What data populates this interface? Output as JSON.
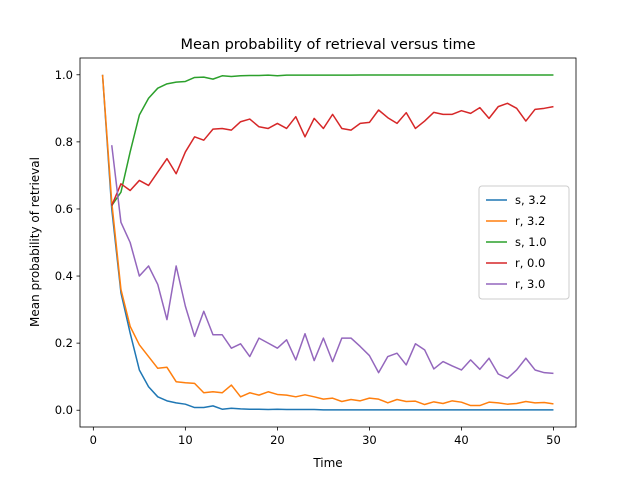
{
  "chart_data": {
    "type": "line",
    "title": "Mean probability of retrieval versus time",
    "xlabel": "Time",
    "ylabel": "Mean probability of retrieval",
    "xlim": [
      -1.45,
      52.45
    ],
    "ylim": [
      -0.05,
      1.05
    ],
    "xticks": [
      0,
      10,
      20,
      30,
      40,
      50
    ],
    "yticks": [
      0.0,
      0.2,
      0.4,
      0.6,
      0.8,
      1.0
    ],
    "xtick_labels": [
      "0",
      "10",
      "20",
      "30",
      "40",
      "50"
    ],
    "ytick_labels": [
      "0.0",
      "0.2",
      "0.4",
      "0.6",
      "0.8",
      "1.0"
    ],
    "grid": false,
    "legend_position": "center-right",
    "series": [
      {
        "name": "s, 3.2",
        "color": "#1f77b4",
        "x": [
          1,
          2,
          3,
          4,
          5,
          6,
          7,
          8,
          9,
          10,
          11,
          12,
          13,
          14,
          15,
          16,
          17,
          18,
          19,
          20,
          21,
          22,
          23,
          24,
          25,
          26,
          27,
          28,
          29,
          30,
          31,
          32,
          33,
          34,
          35,
          36,
          37,
          38,
          39,
          40,
          41,
          42,
          43,
          44,
          45,
          46,
          47,
          48,
          49,
          50
        ],
        "y": [
          1.0,
          0.6,
          0.35,
          0.23,
          0.12,
          0.07,
          0.04,
          0.028,
          0.022,
          0.018,
          0.008,
          0.008,
          0.013,
          0.003,
          0.006,
          0.004,
          0.003,
          0.003,
          0.002,
          0.003,
          0.002,
          0.002,
          0.002,
          0.002,
          0.001,
          0.001,
          0.001,
          0.001,
          0.001,
          0.001,
          0.001,
          0.001,
          0.001,
          0.001,
          0.001,
          0.001,
          0.001,
          0.001,
          0.001,
          0.001,
          0.001,
          0.001,
          0.001,
          0.001,
          0.001,
          0.001,
          0.001,
          0.001,
          0.001,
          0.001
        ]
      },
      {
        "name": "r, 3.2",
        "color": "#ff7f0e",
        "x": [
          1,
          2,
          3,
          4,
          5,
          6,
          7,
          8,
          9,
          10,
          11,
          12,
          13,
          14,
          15,
          16,
          17,
          18,
          19,
          20,
          21,
          22,
          23,
          24,
          25,
          26,
          27,
          28,
          29,
          30,
          31,
          32,
          33,
          34,
          35,
          36,
          37,
          38,
          39,
          40,
          41,
          42,
          43,
          44,
          45,
          46,
          47,
          48,
          49,
          50
        ],
        "y": [
          1.0,
          0.62,
          0.36,
          0.25,
          0.195,
          0.16,
          0.125,
          0.128,
          0.085,
          0.082,
          0.08,
          0.052,
          0.055,
          0.052,
          0.075,
          0.04,
          0.052,
          0.045,
          0.055,
          0.047,
          0.045,
          0.04,
          0.046,
          0.04,
          0.033,
          0.036,
          0.026,
          0.032,
          0.028,
          0.036,
          0.033,
          0.022,
          0.032,
          0.026,
          0.027,
          0.017,
          0.025,
          0.02,
          0.028,
          0.024,
          0.014,
          0.014,
          0.024,
          0.022,
          0.018,
          0.02,
          0.026,
          0.022,
          0.023,
          0.019
        ]
      },
      {
        "name": "s, 1.0",
        "color": "#2ca02c",
        "x": [
          2,
          3,
          4,
          5,
          6,
          7,
          8,
          9,
          10,
          11,
          12,
          13,
          14,
          15,
          16,
          17,
          18,
          19,
          20,
          21,
          22,
          23,
          24,
          25,
          26,
          27,
          28,
          29,
          30,
          31,
          32,
          33,
          34,
          35,
          36,
          37,
          38,
          39,
          40,
          41,
          42,
          43,
          44,
          45,
          46,
          47,
          48,
          49,
          50
        ],
        "y": [
          0.61,
          0.65,
          0.77,
          0.88,
          0.93,
          0.96,
          0.973,
          0.978,
          0.98,
          0.992,
          0.993,
          0.987,
          0.997,
          0.995,
          0.997,
          0.998,
          0.998,
          0.999,
          0.997,
          0.999,
          0.999,
          0.999,
          0.999,
          0.999,
          0.999,
          0.999,
          0.999,
          0.9995,
          0.9995,
          0.9995,
          0.9995,
          0.9995,
          0.9995,
          0.9995,
          0.9995,
          0.9995,
          0.9995,
          0.9995,
          0.9995,
          0.9995,
          0.9995,
          0.9995,
          0.9995,
          0.9995,
          0.9995,
          0.9995,
          0.9995,
          0.9995,
          0.9995
        ]
      },
      {
        "name": "r, 0.0",
        "color": "#d62728",
        "x": [
          2,
          3,
          4,
          5,
          6,
          7,
          8,
          9,
          10,
          11,
          12,
          13,
          14,
          15,
          16,
          17,
          18,
          19,
          20,
          21,
          22,
          23,
          24,
          25,
          26,
          27,
          28,
          29,
          30,
          31,
          32,
          33,
          34,
          35,
          36,
          37,
          38,
          39,
          40,
          41,
          42,
          43,
          44,
          45,
          46,
          47,
          48,
          49,
          50
        ],
        "y": [
          0.61,
          0.675,
          0.655,
          0.685,
          0.67,
          0.71,
          0.75,
          0.705,
          0.77,
          0.815,
          0.805,
          0.838,
          0.84,
          0.835,
          0.86,
          0.868,
          0.845,
          0.84,
          0.855,
          0.84,
          0.875,
          0.815,
          0.87,
          0.84,
          0.882,
          0.84,
          0.835,
          0.855,
          0.858,
          0.895,
          0.872,
          0.855,
          0.887,
          0.84,
          0.862,
          0.888,
          0.882,
          0.882,
          0.893,
          0.885,
          0.902,
          0.87,
          0.905,
          0.915,
          0.9,
          0.862,
          0.897,
          0.9,
          0.905
        ]
      },
      {
        "name": "r, 3.0",
        "color": "#9467bd",
        "x": [
          2,
          3,
          4,
          5,
          6,
          7,
          8,
          9,
          10,
          11,
          12,
          13,
          14,
          15,
          16,
          17,
          18,
          19,
          20,
          21,
          22,
          23,
          24,
          25,
          26,
          27,
          28,
          29,
          30,
          31,
          32,
          33,
          34,
          35,
          36,
          37,
          38,
          39,
          40,
          41,
          42,
          43,
          44,
          45,
          46,
          47,
          48,
          49,
          50
        ],
        "y": [
          0.79,
          0.56,
          0.5,
          0.4,
          0.43,
          0.375,
          0.27,
          0.43,
          0.31,
          0.22,
          0.295,
          0.225,
          0.225,
          0.185,
          0.198,
          0.16,
          0.215,
          0.2,
          0.185,
          0.21,
          0.15,
          0.228,
          0.148,
          0.215,
          0.145,
          0.215,
          0.215,
          0.19,
          0.163,
          0.112,
          0.16,
          0.17,
          0.135,
          0.198,
          0.18,
          0.123,
          0.145,
          0.132,
          0.12,
          0.15,
          0.122,
          0.155,
          0.108,
          0.095,
          0.12,
          0.155,
          0.12,
          0.112,
          0.11
        ]
      }
    ]
  }
}
